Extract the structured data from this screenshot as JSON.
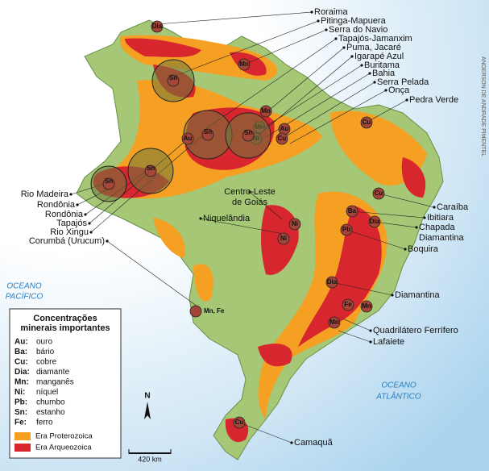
{
  "credit": "ANDERSON DE ANDRADE PIMENTEL",
  "oceans": [
    [
      "OCEANO",
      "PACÍFICO"
    ],
    [
      "OCEANO",
      "ATLÂNTICO"
    ]
  ],
  "places": [
    [
      "Roraima"
    ],
    [
      "Pitinga-Mapuera"
    ],
    [
      "Serra do Navio"
    ],
    [
      "Tapajós-Jamanxim"
    ],
    [
      "Puma, Jacaré"
    ],
    [
      "Igarapé Azul"
    ],
    [
      "Buritama"
    ],
    [
      "Bahia"
    ],
    [
      "Serra Pelada"
    ],
    [
      "Onça"
    ],
    [
      "Pedra Verde"
    ],
    [
      "Rio Madeira"
    ],
    [
      "Rondônia"
    ],
    [
      "Rondônia"
    ],
    [
      "Tapajós"
    ],
    [
      "Rio Xingu"
    ],
    [
      "Corumbá (Urucum)"
    ],
    [
      "Centro-Leste",
      "de Goiás"
    ],
    [
      "Niquelândia"
    ],
    [
      "Caraíba"
    ],
    [
      "Ibitiara"
    ],
    [
      "Chapada",
      "Diamantina"
    ],
    [
      "Boquira"
    ],
    [
      "Diamantina"
    ],
    [
      "Quadrilátero Ferrífero"
    ],
    [
      "Lafaiete"
    ],
    [
      "Camaquã"
    ]
  ],
  "map_symbols": [
    "Dia",
    "Mn",
    "Sn",
    "Mn",
    "Au",
    "Mn",
    "Ni",
    "Sn",
    "Sn",
    "Cu",
    "Au",
    "Sn",
    "Sn",
    "Cu",
    "Cu",
    "Ba",
    "Dia",
    "Pb",
    "Ni",
    "Ni",
    "Dia",
    "Fe",
    "Mn",
    "Mn",
    "Mn, Fe",
    "Cu"
  ],
  "legend": {
    "title": [
      "Concentrações",
      "minerais importantes"
    ],
    "minerals": [
      {
        "code": "Au:",
        "name": "ouro"
      },
      {
        "code": "Ba:",
        "name": "bário"
      },
      {
        "code": "Cu:",
        "name": "cobre"
      },
      {
        "code": "Dia:",
        "name": "diamante"
      },
      {
        "code": "Mn:",
        "name": "manganês"
      },
      {
        "code": "Ni:",
        "name": "níquel"
      },
      {
        "code": "Pb:",
        "name": "chumbo"
      },
      {
        "code": "Sn:",
        "name": "estanho"
      },
      {
        "code": "Fe:",
        "name": "ferro"
      }
    ],
    "eras": [
      {
        "label": "Era Proterozoica",
        "color": "#f5a023"
      },
      {
        "label": "Era Arqueozoica",
        "color": "#d8262e"
      }
    ]
  },
  "north": "N",
  "scale": "420 km"
}
